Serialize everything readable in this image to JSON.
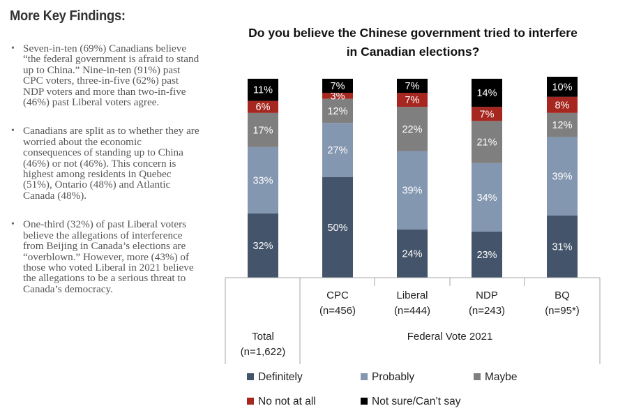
{
  "sidebar": {
    "heading": "More Key Findings:",
    "bullets": [
      "Seven-in-ten (69%) Canadians believe “the federal government is afraid to stand up to China.” Nine-in-ten (91%) past CPC voters, three-in-five (62%) past NDP voters and more than two-in-five (46%) past Liberal voters agree.",
      "Canadians are split as to whether they are worried about the economic consequences of standing up to China (46%) or not (46%). This concern is highest among residents in Quebec (51%), Ontario (48%) and Atlantic Canada (48%).",
      "One-third (32%) of past Liberal voters believe the allegations of interference from Beijing in Canada’s elections are “overblown.” However, more (43%) of those who voted Liberal in 2021 believe the allegations to be a serious threat to Canada’s democracy."
    ]
  },
  "chart_data": {
    "type": "bar",
    "stacked": true,
    "title": "Do you believe the Chinese government tried to interfere in Canadian elections?",
    "categories": [
      {
        "name": "Total",
        "n": "(n=1,622)"
      },
      {
        "name": "CPC",
        "n": "(n=456)"
      },
      {
        "name": "Liberal",
        "n": "(n=444)"
      },
      {
        "name": "NDP",
        "n": "(n=243)"
      },
      {
        "name": "BQ",
        "n": "(n=95*)"
      }
    ],
    "group_label": "Federal Vote 2021",
    "series": [
      {
        "name": "Definitely",
        "color": "#44546a",
        "values": [
          32,
          50,
          24,
          23,
          31
        ]
      },
      {
        "name": "Probably",
        "color": "#8497b0",
        "values": [
          33,
          27,
          39,
          34,
          39
        ]
      },
      {
        "name": "Maybe",
        "color": "#7f7f7f",
        "values": [
          17,
          12,
          22,
          21,
          12
        ]
      },
      {
        "name": "No not at all",
        "color": "#a5271f",
        "values": [
          6,
          3,
          7,
          7,
          8
        ]
      },
      {
        "name": "Not sure/Can’t say",
        "color": "#000000",
        "values": [
          11,
          7,
          7,
          14,
          10
        ]
      }
    ],
    "value_suffix": "%",
    "legend_position": "bottom"
  }
}
